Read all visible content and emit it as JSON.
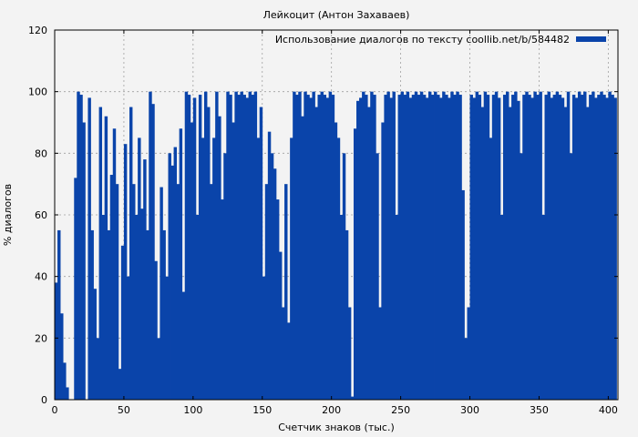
{
  "chart_data": {
    "type": "bar",
    "title": "Лейкоцит (Антон Захаваев)",
    "xlabel": "Счетчик знаков (тыс.)",
    "ylabel": "% диалогов",
    "xlim": [
      0,
      407
    ],
    "ylim": [
      0,
      120
    ],
    "xticks": [
      "0",
      "50",
      "100",
      "150",
      "200",
      "250",
      "300",
      "350",
      "400"
    ],
    "yticks": [
      "0",
      "20",
      "40",
      "60",
      "80",
      "100",
      "120"
    ],
    "grid": true,
    "legend_position": "top-right",
    "series": [
      {
        "name": "Использование диалогов по тексту coollib.net/b/584482",
        "color": "#0a44aa",
        "points": [
          [
            1,
            38
          ],
          [
            3,
            55
          ],
          [
            5,
            28
          ],
          [
            7,
            12
          ],
          [
            9,
            4
          ],
          [
            11,
            0
          ],
          [
            13,
            0
          ],
          [
            15,
            72
          ],
          [
            17,
            100
          ],
          [
            19,
            99
          ],
          [
            21,
            90
          ],
          [
            23,
            0
          ],
          [
            25,
            98
          ],
          [
            27,
            55
          ],
          [
            29,
            36
          ],
          [
            31,
            20
          ],
          [
            33,
            95
          ],
          [
            35,
            60
          ],
          [
            37,
            92
          ],
          [
            39,
            55
          ],
          [
            41,
            73
          ],
          [
            43,
            88
          ],
          [
            45,
            70
          ],
          [
            47,
            10
          ],
          [
            49,
            50
          ],
          [
            51,
            83
          ],
          [
            53,
            40
          ],
          [
            55,
            95
          ],
          [
            57,
            70
          ],
          [
            59,
            60
          ],
          [
            61,
            85
          ],
          [
            63,
            62
          ],
          [
            65,
            78
          ],
          [
            67,
            55
          ],
          [
            69,
            100
          ],
          [
            71,
            96
          ],
          [
            73,
            45
          ],
          [
            75,
            20
          ],
          [
            77,
            69
          ],
          [
            79,
            55
          ],
          [
            81,
            40
          ],
          [
            83,
            80
          ],
          [
            85,
            76
          ],
          [
            87,
            82
          ],
          [
            89,
            70
          ],
          [
            91,
            88
          ],
          [
            93,
            35
          ],
          [
            95,
            100
          ],
          [
            97,
            99
          ],
          [
            99,
            90
          ],
          [
            101,
            98
          ],
          [
            103,
            60
          ],
          [
            105,
            99
          ],
          [
            107,
            85
          ],
          [
            109,
            100
          ],
          [
            111,
            95
          ],
          [
            113,
            70
          ],
          [
            115,
            85
          ],
          [
            117,
            100
          ],
          [
            119,
            92
          ],
          [
            121,
            65
          ],
          [
            123,
            80
          ],
          [
            125,
            100
          ],
          [
            127,
            99
          ],
          [
            129,
            90
          ],
          [
            131,
            100
          ],
          [
            133,
            99
          ],
          [
            135,
            100
          ],
          [
            137,
            99
          ],
          [
            139,
            98
          ],
          [
            141,
            100
          ],
          [
            143,
            99
          ],
          [
            145,
            100
          ],
          [
            147,
            85
          ],
          [
            149,
            95
          ],
          [
            151,
            40
          ],
          [
            153,
            70
          ],
          [
            155,
            87
          ],
          [
            157,
            80
          ],
          [
            159,
            75
          ],
          [
            161,
            65
          ],
          [
            163,
            48
          ],
          [
            165,
            30
          ],
          [
            167,
            70
          ],
          [
            169,
            25
          ],
          [
            171,
            85
          ],
          [
            173,
            100
          ],
          [
            175,
            99
          ],
          [
            177,
            100
          ],
          [
            179,
            92
          ],
          [
            181,
            100
          ],
          [
            183,
            99
          ],
          [
            185,
            98
          ],
          [
            187,
            100
          ],
          [
            189,
            95
          ],
          [
            191,
            99
          ],
          [
            193,
            100
          ],
          [
            195,
            99
          ],
          [
            197,
            98
          ],
          [
            199,
            100
          ],
          [
            201,
            99
          ],
          [
            203,
            90
          ],
          [
            205,
            85
          ],
          [
            207,
            60
          ],
          [
            209,
            80
          ],
          [
            211,
            55
          ],
          [
            213,
            30
          ],
          [
            215,
            1
          ],
          [
            217,
            88
          ],
          [
            219,
            97
          ],
          [
            221,
            98
          ],
          [
            223,
            100
          ],
          [
            225,
            99
          ],
          [
            227,
            95
          ],
          [
            229,
            100
          ],
          [
            231,
            99
          ],
          [
            233,
            80
          ],
          [
            235,
            30
          ],
          [
            237,
            90
          ],
          [
            239,
            99
          ],
          [
            241,
            100
          ],
          [
            243,
            98
          ],
          [
            245,
            100
          ],
          [
            247,
            60
          ],
          [
            249,
            99
          ],
          [
            251,
            100
          ],
          [
            253,
            99
          ],
          [
            255,
            100
          ],
          [
            257,
            98
          ],
          [
            259,
            99
          ],
          [
            261,
            100
          ],
          [
            263,
            99
          ],
          [
            265,
            100
          ],
          [
            267,
            99
          ],
          [
            269,
            98
          ],
          [
            271,
            100
          ],
          [
            273,
            99
          ],
          [
            275,
            100
          ],
          [
            277,
            99
          ],
          [
            279,
            98
          ],
          [
            281,
            100
          ],
          [
            283,
            99
          ],
          [
            285,
            98
          ],
          [
            287,
            100
          ],
          [
            289,
            99
          ],
          [
            291,
            100
          ],
          [
            293,
            99
          ],
          [
            295,
            68
          ],
          [
            297,
            20
          ],
          [
            299,
            30
          ],
          [
            301,
            99
          ],
          [
            303,
            98
          ],
          [
            305,
            100
          ],
          [
            307,
            99
          ],
          [
            309,
            95
          ],
          [
            311,
            100
          ],
          [
            313,
            99
          ],
          [
            315,
            85
          ],
          [
            317,
            99
          ],
          [
            319,
            100
          ],
          [
            321,
            98
          ],
          [
            323,
            60
          ],
          [
            325,
            99
          ],
          [
            327,
            100
          ],
          [
            329,
            95
          ],
          [
            331,
            99
          ],
          [
            333,
            100
          ],
          [
            335,
            97
          ],
          [
            337,
            80
          ],
          [
            339,
            99
          ],
          [
            341,
            100
          ],
          [
            343,
            99
          ],
          [
            345,
            98
          ],
          [
            347,
            100
          ],
          [
            349,
            99
          ],
          [
            351,
            100
          ],
          [
            353,
            60
          ],
          [
            355,
            99
          ],
          [
            357,
            100
          ],
          [
            359,
            98
          ],
          [
            361,
            99
          ],
          [
            363,
            100
          ],
          [
            365,
            99
          ],
          [
            367,
            98
          ],
          [
            369,
            95
          ],
          [
            371,
            100
          ],
          [
            373,
            80
          ],
          [
            375,
            99
          ],
          [
            377,
            98
          ],
          [
            379,
            100
          ],
          [
            381,
            99
          ],
          [
            383,
            100
          ],
          [
            385,
            95
          ],
          [
            387,
            99
          ],
          [
            389,
            100
          ],
          [
            391,
            98
          ],
          [
            393,
            99
          ],
          [
            395,
            100
          ],
          [
            397,
            99
          ],
          [
            399,
            98
          ],
          [
            401,
            100
          ],
          [
            403,
            99
          ],
          [
            405,
            98
          ]
        ]
      }
    ]
  }
}
